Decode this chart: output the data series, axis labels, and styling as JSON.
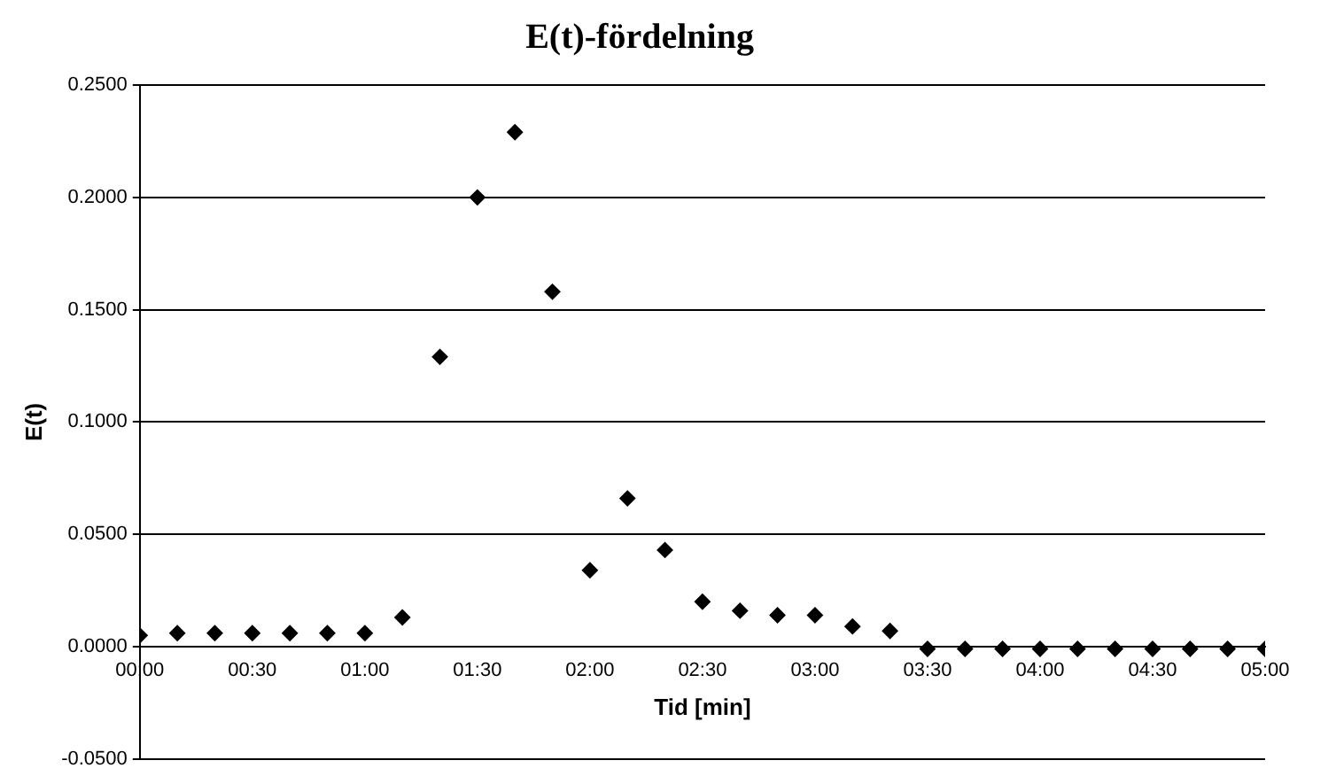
{
  "chart_data": {
    "type": "scatter",
    "title": "E(t)-fördelning",
    "xlabel": "Tid [min]",
    "ylabel": "E(t)",
    "x": [
      0,
      0.1667,
      0.3333,
      0.5,
      0.6667,
      0.8333,
      1,
      1.1667,
      1.3333,
      1.5,
      1.6667,
      1.8333,
      2,
      2.1667,
      2.3333,
      2.5,
      2.6667,
      2.8333,
      3,
      3.1667,
      3.3333,
      3.5,
      3.6667,
      3.8333,
      4,
      4.1667,
      4.3333,
      4.5,
      4.6667,
      4.8333,
      5
    ],
    "series": [
      {
        "color": "#000000",
        "values": [
          0.005,
          0.006,
          0.006,
          0.006,
          0.006,
          0.006,
          0.006,
          0.013,
          0.129,
          0.2,
          0.229,
          0.158,
          0.034,
          0.066,
          0.043,
          0.02,
          0.016,
          0.014,
          0.014,
          0.009,
          0.007,
          -0.001,
          -0.001,
          -0.001,
          -0.001,
          -0.001,
          -0.001,
          -0.001,
          -0.001,
          -0.001,
          -0.001
        ]
      }
    ],
    "xlim": [
      0,
      5
    ],
    "xticks": [
      {
        "value": 0,
        "label": "00:00"
      },
      {
        "value": 0.5,
        "label": "00:30"
      },
      {
        "value": 1,
        "label": "01:00"
      },
      {
        "value": 1.5,
        "label": "01:30"
      },
      {
        "value": 2,
        "label": "02:00"
      },
      {
        "value": 2.5,
        "label": "02:30"
      },
      {
        "value": 3,
        "label": "03:00"
      },
      {
        "value": 3.5,
        "label": "03:30"
      },
      {
        "value": 4,
        "label": "04:00"
      },
      {
        "value": 4.5,
        "label": "04:30"
      },
      {
        "value": 5,
        "label": "05:00"
      }
    ],
    "ylim": [
      -0.05,
      0.25
    ],
    "yticks": [
      {
        "value": -0.05,
        "label": "-0.0500"
      },
      {
        "value": 0,
        "label": "0.0000"
      },
      {
        "value": 0.05,
        "label": "0.0500"
      },
      {
        "value": 0.1,
        "label": "0.1000"
      },
      {
        "value": 0.15,
        "label": "0.1500"
      },
      {
        "value": 0.2,
        "label": "0.2000"
      },
      {
        "value": 0.25,
        "label": "0.2500"
      }
    ],
    "grid": "y",
    "legend": false,
    "marker": "diamond"
  }
}
